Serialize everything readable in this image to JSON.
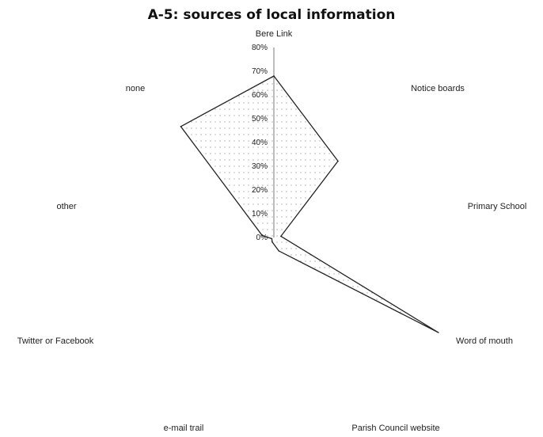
{
  "chart_data": {
    "type": "radar",
    "title": "A-5: sources of local information",
    "categories": [
      "Bere Link",
      "Notice boards",
      "Primary School",
      "Word of mouth",
      "Parish Council website",
      "e-mail trail",
      "Twitter or Facebook",
      "other",
      "none"
    ],
    "values": [
      68,
      42,
      3,
      80,
      6,
      2,
      1,
      5,
      61
    ],
    "rlim": [
      0,
      80
    ],
    "ticks": [
      "0%",
      "10%",
      "20%",
      "30%",
      "40%",
      "50%",
      "60%",
      "70%",
      "80%"
    ],
    "grid": false,
    "legend": "none",
    "colors": {
      "line": "#222222",
      "fill_dots": "#888888",
      "axis": "#222222"
    }
  }
}
